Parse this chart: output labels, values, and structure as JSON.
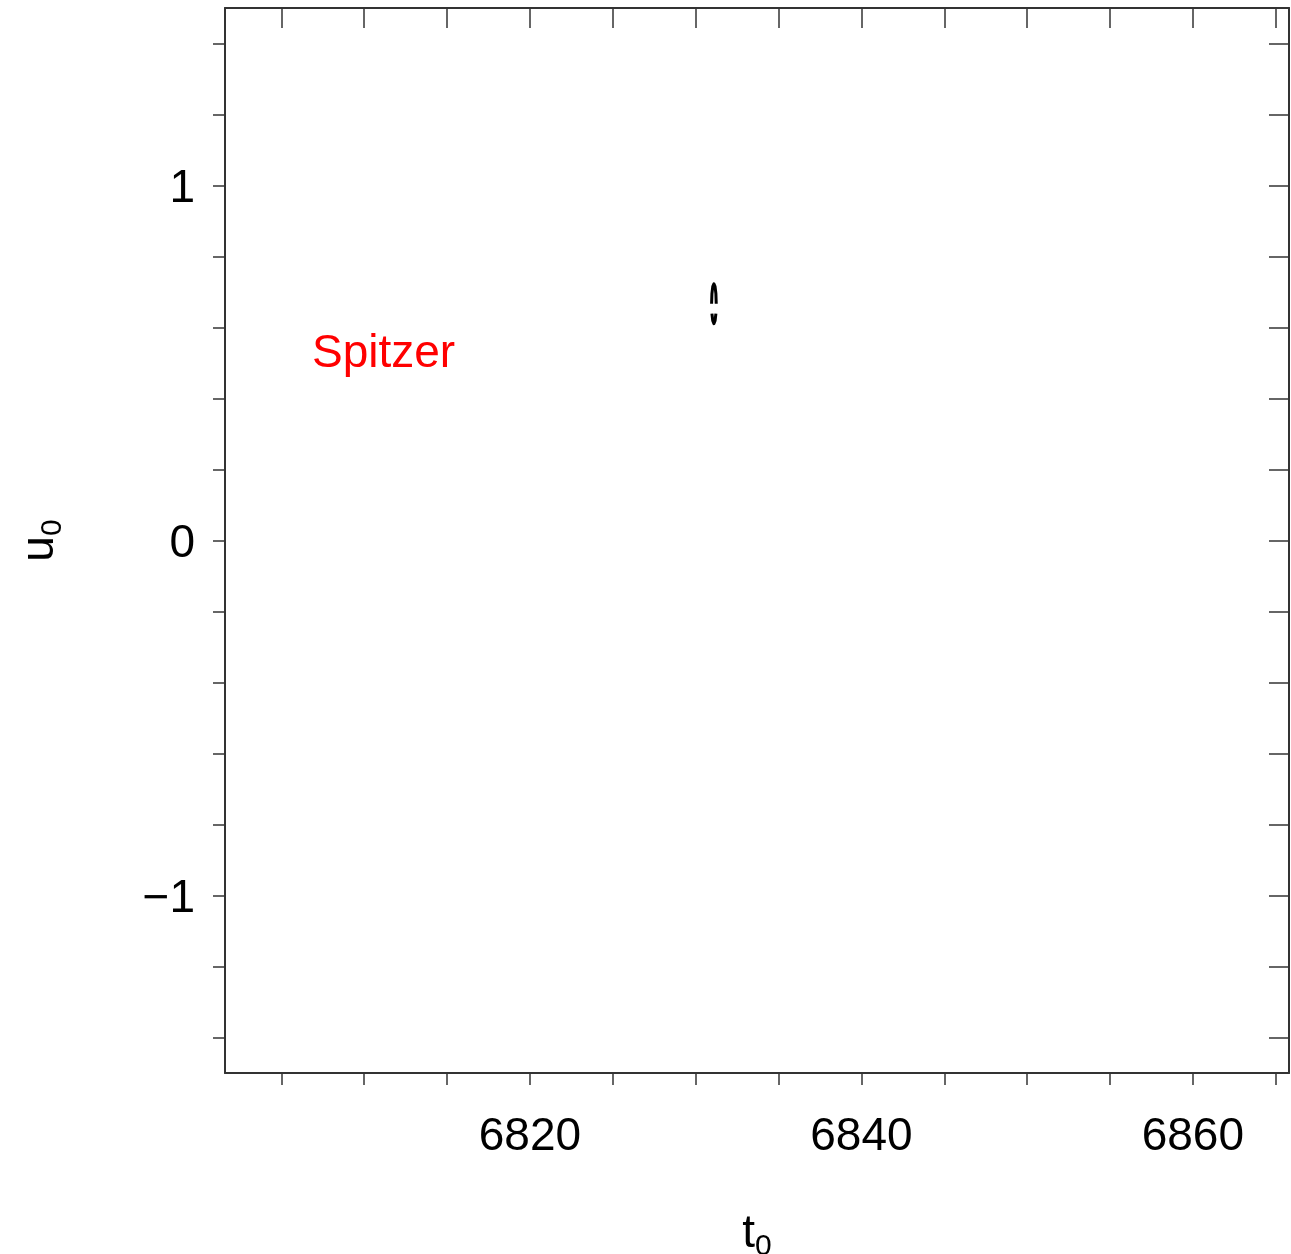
{
  "chart_data": {
    "type": "line",
    "xlabel": "t$_{0}$",
    "ylabel": "u$_{0}$",
    "annotations": [
      "Spitzer"
    ],
    "series": [
      {
        "color": "#000000",
        "x": [
          6830.96,
          6830.98,
          6831.03,
          6831.1,
          6831.17,
          6831.22,
          6831.24
        ],
        "values": [
          0.667,
          0.695,
          0.715,
          0.723,
          0.715,
          0.695,
          0.667
        ]
      },
      {
        "color": "#000000",
        "x": [
          6830.98,
          6831.03,
          6831.1,
          6831.17,
          6831.22
        ],
        "values": [
          0.639,
          0.619,
          0.611,
          0.619,
          0.639
        ]
      }
    ],
    "xlim": [
      6801.6,
      6865.8
    ],
    "xticks": [
      {
        "value": 6805,
        "label": null
      },
      {
        "value": 6810,
        "label": null
      },
      {
        "value": 6815,
        "label": null
      },
      6820,
      {
        "value": 6825,
        "label": null
      },
      {
        "value": 6830,
        "label": null
      },
      {
        "value": 6835,
        "label": null
      },
      6840,
      {
        "value": 6845,
        "label": null
      },
      {
        "value": 6850,
        "label": null
      },
      {
        "value": 6855,
        "label": null
      },
      6860,
      {
        "value": 6865,
        "label": null
      }
    ],
    "ylim": [
      -1.5,
      1.5
    ],
    "yticks": [
      {
        "value": -1.4,
        "label": null
      },
      {
        "value": -1.2,
        "label": null
      },
      {
        "value": -1,
        "label": "−1"
      },
      {
        "value": -0.8,
        "label": null
      },
      {
        "value": -0.6,
        "label": null
      },
      {
        "value": -0.4,
        "label": null
      },
      {
        "value": -0.2,
        "label": null
      },
      0,
      {
        "value": 0.2,
        "label": null
      },
      {
        "value": 0.4,
        "label": null
      },
      {
        "value": 0.6,
        "label": null
      },
      {
        "value": 0.8,
        "label": null
      },
      1,
      {
        "value": 1.2,
        "label": null
      },
      {
        "value": 1.4,
        "label": null
      }
    ],
    "grid": false
  }
}
